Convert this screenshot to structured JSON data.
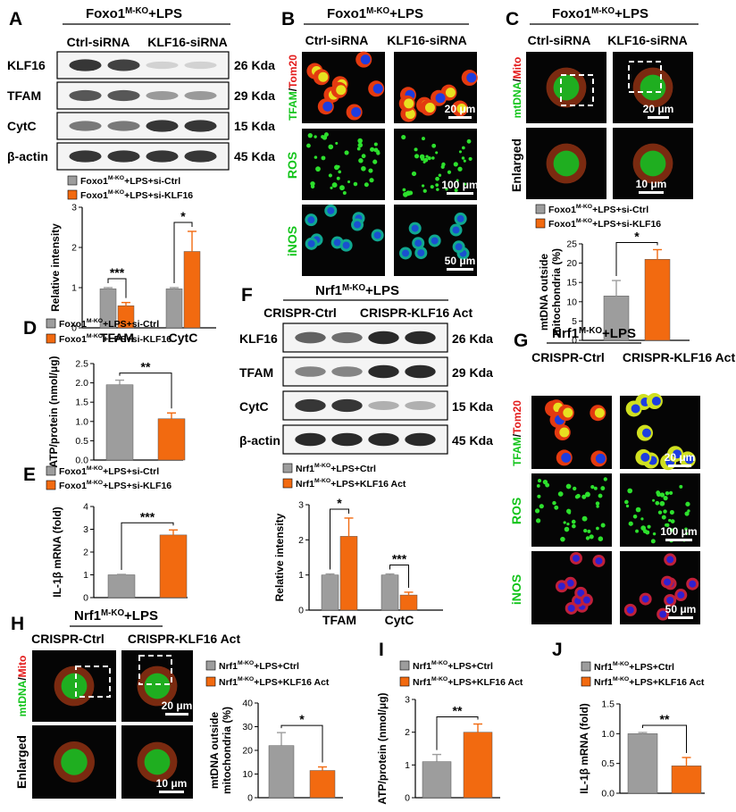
{
  "colors": {
    "ctrl": "#9d9d9d",
    "treat": "#f26a10",
    "fluor_green": "#12c41a",
    "fluor_red": "#e31b1b",
    "scale_white": "#ffffff"
  },
  "panels": {
    "A": {
      "letter": "A",
      "title": "Foxo1",
      "title_sup": "M-KO",
      "title_suffix": "+LPS",
      "col1": "Ctrl-siRNA",
      "col2": "KLF16-siRNA",
      "blots": [
        {
          "name": "KLF16",
          "size": "26 Kda"
        },
        {
          "name": "TFAM",
          "size": "29 Kda"
        },
        {
          "name": "CytC",
          "size": "15 Kda"
        },
        {
          "name": "β-actin",
          "size": "45 Kda"
        }
      ]
    },
    "B": {
      "letter": "B",
      "title": "Foxo1",
      "title_sup": "M-KO",
      "title_suffix": "+LPS",
      "col1": "Ctrl-siRNA",
      "col2": "KLF16-siRNA",
      "row1_green": "TFAM",
      "row1_red": "Tom20",
      "row2": "ROS",
      "row3": "iNOS",
      "scale1": "20 μm",
      "scale2": "100 μm",
      "scale3": "50 μm"
    },
    "C": {
      "letter": "C",
      "title": "Foxo1",
      "title_sup": "M-KO",
      "title_suffix": "+LPS",
      "col1": "Ctrl-siRNA",
      "col2": "KLF16-siRNA",
      "row1_green": "mtDNA",
      "row1_red": "Mito",
      "row2": "Enlarged",
      "scale1": "20 μm",
      "scale2": "10 μm"
    },
    "D": {
      "letter": "D"
    },
    "E": {
      "letter": "E"
    },
    "F": {
      "letter": "F",
      "title": "Nrf1",
      "title_sup": "M-KO",
      "title_suffix": "+LPS",
      "col1": "CRISPR-Ctrl",
      "col2": "CRISPR-KLF16 Act",
      "blots": [
        {
          "name": "KLF16",
          "size": "26 Kda"
        },
        {
          "name": "TFAM",
          "size": "29 Kda"
        },
        {
          "name": "CytC",
          "size": "15 Kda"
        },
        {
          "name": "β-actin",
          "size": "45 Kda"
        }
      ]
    },
    "G": {
      "letter": "G",
      "title": "Nrf1",
      "title_sup": "M-KO",
      "title_suffix": "+LPS",
      "col1": "CRISPR-Ctrl",
      "col2": "CRISPR-KLF16 Act",
      "row1_green": "TFAM",
      "row1_red": "Tom20",
      "row2": "ROS",
      "row3": "iNOS",
      "scale1": "20 μm",
      "scale2": "100 μm",
      "scale3": "50 μm"
    },
    "H": {
      "letter": "H",
      "title": "Nrf1",
      "title_sup": "M-KO",
      "title_suffix": "+LPS",
      "col1": "CRISPR-Ctrl",
      "col2": "CRISPR-KLF16 Act",
      "row1_green": "mtDNA",
      "row1_red": "Mito",
      "row2": "Enlarged",
      "scale1": "20 μm",
      "scale2": "10 μm"
    },
    "I": {
      "letter": "I"
    },
    "J": {
      "letter": "J"
    }
  },
  "chart_data": [
    {
      "panel": "A",
      "type": "bar",
      "categories": [
        "TFAM",
        "CytC"
      ],
      "ylabel": "Relative intensity",
      "ylim": [
        0,
        3
      ],
      "yticks": [
        0,
        1,
        2,
        3
      ],
      "series": [
        {
          "name_prefix": "Foxo1",
          "name_sup": "M-KO",
          "name_suffix": "+LPS+si-Ctrl",
          "values": [
            0.97,
            0.97
          ],
          "err": [
            0.03,
            0.03
          ]
        },
        {
          "name_prefix": "Foxo1",
          "name_sup": "M-KO",
          "name_suffix": "+LPS+si-KLF16",
          "values": [
            0.55,
            1.9
          ],
          "err": [
            0.08,
            0.5
          ]
        }
      ],
      "sig": [
        "***",
        "*"
      ]
    },
    {
      "panel": "C",
      "type": "bar",
      "categories": [
        ""
      ],
      "ylabel_lines": [
        "mtDNA outside",
        "mitochondria (%)"
      ],
      "ylim": [
        0,
        25
      ],
      "yticks": [
        0,
        5,
        10,
        15,
        20,
        25
      ],
      "series": [
        {
          "name_prefix": "Foxo1",
          "name_sup": "M-KO",
          "name_suffix": "+LPS+si-Ctrl",
          "values": [
            11.5
          ],
          "err": [
            4
          ]
        },
        {
          "name_prefix": "Foxo1",
          "name_sup": "M-KO",
          "name_suffix": "+LPS+si-KLF16",
          "values": [
            21
          ],
          "err": [
            2.5
          ]
        }
      ],
      "sig": [
        "*"
      ]
    },
    {
      "panel": "D",
      "type": "bar",
      "categories": [
        ""
      ],
      "ylabel": "ATP/protein (nmol/μg)",
      "ylim": [
        0,
        2.5
      ],
      "yticks": [
        0.0,
        0.5,
        1.0,
        1.5,
        2.0,
        2.5
      ],
      "series": [
        {
          "name_prefix": "Foxo1",
          "name_sup": "M-KO",
          "name_suffix": "+LPS+si-Ctrl",
          "values": [
            1.95
          ],
          "err": [
            0.12
          ]
        },
        {
          "name_prefix": "Foxo1",
          "name_sup": "M-KO",
          "name_suffix": "+LPS+si-KLF16",
          "values": [
            1.07
          ],
          "err": [
            0.15
          ]
        }
      ],
      "sig": [
        "**"
      ]
    },
    {
      "panel": "E",
      "type": "bar",
      "categories": [
        ""
      ],
      "ylabel": "IL-1β mRNA (fold)",
      "ylim": [
        0,
        4
      ],
      "yticks": [
        0,
        1,
        2,
        3,
        4
      ],
      "series": [
        {
          "name_prefix": "Foxo1",
          "name_sup": "M-KO",
          "name_suffix": "+LPS+si-Ctrl",
          "values": [
            1.0
          ],
          "err": [
            0.02
          ]
        },
        {
          "name_prefix": "Foxo1",
          "name_sup": "M-KO",
          "name_suffix": "+LPS+si-KLF16",
          "values": [
            2.75
          ],
          "err": [
            0.22
          ]
        }
      ],
      "sig": [
        "***"
      ]
    },
    {
      "panel": "F",
      "type": "bar",
      "categories": [
        "TFAM",
        "CytC"
      ],
      "ylabel": "Relative intensity",
      "ylim": [
        0,
        3
      ],
      "yticks": [
        0,
        1,
        2,
        3
      ],
      "series": [
        {
          "name_prefix": "Nrf1",
          "name_sup": "M-KO",
          "name_suffix": "+LPS+Ctrl",
          "values": [
            1.0,
            1.0
          ],
          "err": [
            0.03,
            0.03
          ]
        },
        {
          "name_prefix": "Nrf1",
          "name_sup": "M-KO",
          "name_suffix": "+LPS+KLF16 Act",
          "values": [
            2.1,
            0.43
          ],
          "err": [
            0.52,
            0.08
          ]
        }
      ],
      "sig": [
        "*",
        "***"
      ]
    },
    {
      "panel": "H",
      "type": "bar",
      "categories": [
        ""
      ],
      "ylabel_lines": [
        "mtDNA outside",
        "mitochondria (%)"
      ],
      "ylim": [
        0,
        40
      ],
      "yticks": [
        0,
        10,
        20,
        30,
        40
      ],
      "series": [
        {
          "name_prefix": "Nrf1",
          "name_sup": "M-KO",
          "name_suffix": "+LPS+Ctrl",
          "values": [
            22
          ],
          "err": [
            5.5
          ]
        },
        {
          "name_prefix": "Nrf1",
          "name_sup": "M-KO",
          "name_suffix": "+LPS+KLF16 Act",
          "values": [
            11.5
          ],
          "err": [
            1.5
          ]
        }
      ],
      "sig": [
        "*"
      ]
    },
    {
      "panel": "I",
      "type": "bar",
      "categories": [
        ""
      ],
      "ylabel": "ATP/protein (nmol/μg)",
      "ylim": [
        0,
        3
      ],
      "yticks": [
        0,
        1,
        2,
        3
      ],
      "series": [
        {
          "name_prefix": "Nrf1",
          "name_sup": "M-KO",
          "name_suffix": "+LPS+Ctrl",
          "values": [
            1.1
          ],
          "err": [
            0.22
          ]
        },
        {
          "name_prefix": "Nrf1",
          "name_sup": "M-KO",
          "name_suffix": "+LPS+KLF16 Act",
          "values": [
            2.0
          ],
          "err": [
            0.25
          ]
        }
      ],
      "sig": [
        "**"
      ]
    },
    {
      "panel": "J",
      "type": "bar",
      "categories": [
        ""
      ],
      "ylabel": "IL-1β mRNA (fold)",
      "ylim": [
        0,
        1.5
      ],
      "yticks": [
        0.0,
        0.5,
        1.0,
        1.5
      ],
      "series": [
        {
          "name_prefix": "Nrf1",
          "name_sup": "M-KO",
          "name_suffix": "+LPS+Ctrl",
          "values": [
            1.0
          ],
          "err": [
            0.02
          ]
        },
        {
          "name_prefix": "Nrf1",
          "name_sup": "M-KO",
          "name_suffix": "+LPS+KLF16 Act",
          "values": [
            0.46
          ],
          "err": [
            0.14
          ]
        }
      ],
      "sig": [
        "**"
      ]
    }
  ]
}
